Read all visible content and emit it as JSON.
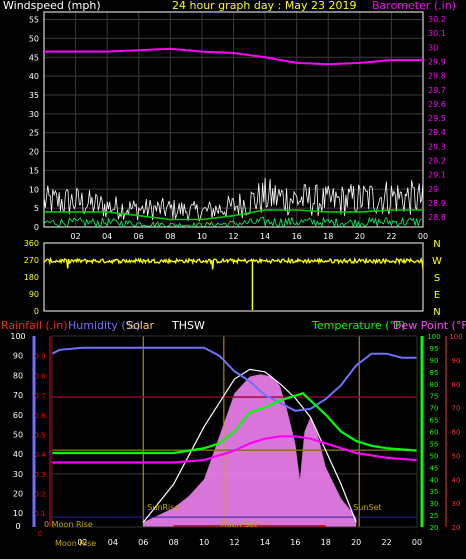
{
  "colors": {
    "background": "#000000",
    "grid": "#3a3a3a",
    "frame": "#ffffff",
    "windspeed": "#ffffff",
    "wind_avg": "#00cc00",
    "wind_low": "#00ff66",
    "barometer": "#ff00ff",
    "wind_dir": "#ffff00",
    "rainfall": "#ff0000",
    "humidity": "#7070ff",
    "solar": "#ffcc66",
    "thsw": "#ffffff",
    "temperature": "#00ff00",
    "dew_point": "#ff00ff",
    "rain_scale": "#ff3333",
    "sun_line": "#c8a800",
    "moon_line": "#c8a800",
    "solar_fill": "#ff88ff",
    "uv_line": "#ff0000",
    "rain_rate": "#990033",
    "et_line": "#777700"
  },
  "header": {
    "windspeed_title": "Windspeed (mph)",
    "graph_title": "24 hour graph day : May 23 2019",
    "barometer_title": "Barometer (.in)"
  },
  "bottom_header": {
    "rainfall": "Rainfall (.in)",
    "humidity": "Humidity (%)",
    "solar": "Solar",
    "thsw": "THSW",
    "temperature": "Temperature (°F)",
    "dew_point": "Dew Point (°F)"
  },
  "events": {
    "sunrise": "SunRise",
    "sunset": "SunSet",
    "moonrise_left": "0 Moon Rise",
    "moonset": "Moon Set",
    "moonrise_bottom": "Moon Rise"
  },
  "compass": [
    "N",
    "W",
    "S",
    "E",
    "N"
  ],
  "chart_data": [
    {
      "type": "line",
      "name": "wind_barometer",
      "x_tick_labels": [
        "02",
        "04",
        "06",
        "08",
        "10",
        "12",
        "14",
        "16",
        "18",
        "20",
        "22",
        "00"
      ],
      "y_left_ticks": [
        "0",
        "5",
        "10",
        "15",
        "20",
        "25",
        "30",
        "35",
        "40",
        "45",
        "50",
        "55"
      ],
      "y_right_ticks": [
        "28.8",
        "28.9",
        "29",
        "29.1",
        "29.2",
        "29.3",
        "29.4",
        "29.5",
        "29.6",
        "29.7",
        "29.8",
        "29.9",
        "30",
        "30.1",
        "30.2"
      ],
      "ylim_left": [
        0,
        57
      ],
      "ylim_right": [
        28.73,
        30.25
      ],
      "barometer": [
        {
          "h": 0,
          "v": 29.97
        },
        {
          "h": 2,
          "v": 29.97
        },
        {
          "h": 4,
          "v": 29.97
        },
        {
          "h": 6,
          "v": 29.98
        },
        {
          "h": 8,
          "v": 29.99
        },
        {
          "h": 10,
          "v": 29.97
        },
        {
          "h": 12,
          "v": 29.96
        },
        {
          "h": 14,
          "v": 29.93
        },
        {
          "h": 16,
          "v": 29.89
        },
        {
          "h": 18,
          "v": 29.88
        },
        {
          "h": 20,
          "v": 29.89
        },
        {
          "h": 22,
          "v": 29.91
        },
        {
          "h": 24,
          "v": 29.91
        }
      ],
      "wind_gust_profile": [
        {
          "h": 0,
          "v": 10
        },
        {
          "h": 2,
          "v": 10
        },
        {
          "h": 4,
          "v": 8
        },
        {
          "h": 6,
          "v": 7
        },
        {
          "h": 8,
          "v": 7
        },
        {
          "h": 10,
          "v": 6
        },
        {
          "h": 12,
          "v": 8
        },
        {
          "h": 14,
          "v": 12
        },
        {
          "h": 16,
          "v": 11
        },
        {
          "h": 18,
          "v": 10
        },
        {
          "h": 20,
          "v": 11
        },
        {
          "h": 22,
          "v": 12
        },
        {
          "h": 24,
          "v": 11
        }
      ],
      "wind_avg": [
        {
          "h": 0,
          "v": 4
        },
        {
          "h": 2,
          "v": 4
        },
        {
          "h": 4,
          "v": 4
        },
        {
          "h": 6,
          "v": 3
        },
        {
          "h": 8,
          "v": 2
        },
        {
          "h": 10,
          "v": 2
        },
        {
          "h": 12,
          "v": 3
        },
        {
          "h": 14,
          "v": 4.5
        },
        {
          "h": 16,
          "v": 4.5
        },
        {
          "h": 18,
          "v": 4
        },
        {
          "h": 20,
          "v": 4
        },
        {
          "h": 22,
          "v": 4.5
        },
        {
          "h": 24,
          "v": 4.5
        }
      ]
    },
    {
      "type": "line",
      "name": "wind_direction",
      "y_ticks": [
        "360",
        "270",
        "180",
        "90",
        "0"
      ],
      "ylim": [
        0,
        360
      ],
      "mean_direction": 265,
      "dip": {
        "h": 13.2,
        "v": 5
      }
    },
    {
      "type": "line",
      "name": "temperature_humidity",
      "x_tick_labels": [
        "02",
        "04",
        "06",
        "08",
        "10",
        "12",
        "14",
        "16",
        "18",
        "20",
        "22",
        "00"
      ],
      "rain_ticks": [
        "0",
        "0.1",
        "0.2",
        "0.3",
        "0.4",
        "0.5",
        "0.6",
        "0.7",
        "0.8",
        "0.9"
      ],
      "humidity_ticks": [
        "10",
        "20",
        "30",
        "40",
        "50",
        "60",
        "70",
        "80",
        "90",
        "100"
      ],
      "temp_ticks_left": [
        "20",
        "25",
        "30",
        "35",
        "40",
        "45",
        "50",
        "55",
        "60",
        "65",
        "70",
        "75",
        "80",
        "85",
        "90",
        "95",
        "100"
      ],
      "temp_ticks_right": [
        "20",
        "30",
        "40",
        "50",
        "60",
        "70",
        "80",
        "90",
        "100"
      ],
      "humidity": [
        {
          "h": 0,
          "v": 91
        },
        {
          "h": 0.5,
          "v": 93
        },
        {
          "h": 2,
          "v": 94
        },
        {
          "h": 4,
          "v": 94
        },
        {
          "h": 6,
          "v": 94
        },
        {
          "h": 8,
          "v": 94
        },
        {
          "h": 10,
          "v": 94
        },
        {
          "h": 11,
          "v": 90
        },
        {
          "h": 12,
          "v": 82
        },
        {
          "h": 13,
          "v": 77
        },
        {
          "h": 14,
          "v": 70
        },
        {
          "h": 15,
          "v": 66
        },
        {
          "h": 16,
          "v": 62
        },
        {
          "h": 17,
          "v": 63
        },
        {
          "h": 18,
          "v": 68
        },
        {
          "h": 19,
          "v": 75
        },
        {
          "h": 20,
          "v": 85
        },
        {
          "h": 21,
          "v": 91
        },
        {
          "h": 22,
          "v": 91
        },
        {
          "h": 23,
          "v": 89
        },
        {
          "h": 24,
          "v": 89
        }
      ],
      "temperature": [
        {
          "h": 0,
          "v": 51
        },
        {
          "h": 2,
          "v": 51
        },
        {
          "h": 4,
          "v": 51
        },
        {
          "h": 6,
          "v": 51
        },
        {
          "h": 8,
          "v": 51
        },
        {
          "h": 10,
          "v": 53
        },
        {
          "h": 11,
          "v": 55
        },
        {
          "h": 12,
          "v": 60
        },
        {
          "h": 13,
          "v": 68
        },
        {
          "h": 14,
          "v": 70
        },
        {
          "h": 15,
          "v": 73
        },
        {
          "h": 16,
          "v": 75
        },
        {
          "h": 16.5,
          "v": 76
        },
        {
          "h": 17,
          "v": 73
        },
        {
          "h": 18,
          "v": 67
        },
        {
          "h": 19,
          "v": 60
        },
        {
          "h": 20,
          "v": 56
        },
        {
          "h": 21,
          "v": 54
        },
        {
          "h": 22,
          "v": 53
        },
        {
          "h": 24,
          "v": 52
        }
      ],
      "dew_point": [
        {
          "h": 0,
          "v": 47
        },
        {
          "h": 4,
          "v": 47
        },
        {
          "h": 8,
          "v": 47
        },
        {
          "h": 10,
          "v": 48
        },
        {
          "h": 12,
          "v": 52
        },
        {
          "h": 13,
          "v": 55
        },
        {
          "h": 14,
          "v": 57
        },
        {
          "h": 15,
          "v": 58
        },
        {
          "h": 16,
          "v": 58
        },
        {
          "h": 17,
          "v": 57
        },
        {
          "h": 18,
          "v": 55
        },
        {
          "h": 19,
          "v": 53
        },
        {
          "h": 20,
          "v": 51
        },
        {
          "h": 22,
          "v": 49
        },
        {
          "h": 24,
          "v": 48
        }
      ],
      "thsw": [
        {
          "h": 6,
          "v": 22
        },
        {
          "h": 8,
          "v": 38
        },
        {
          "h": 10,
          "v": 62
        },
        {
          "h": 12,
          "v": 82
        },
        {
          "h": 13,
          "v": 86
        },
        {
          "h": 14,
          "v": 85
        },
        {
          "h": 15,
          "v": 80
        },
        {
          "h": 16,
          "v": 74
        },
        {
          "h": 17,
          "v": 66
        },
        {
          "h": 18,
          "v": 52
        },
        {
          "h": 19,
          "v": 38
        },
        {
          "h": 20,
          "v": 22
        }
      ],
      "solar": [
        {
          "h": 6,
          "v": 22
        },
        {
          "h": 8,
          "v": 28
        },
        {
          "h": 9,
          "v": 33
        },
        {
          "h": 10,
          "v": 40
        },
        {
          "h": 11,
          "v": 58
        },
        {
          "h": 12,
          "v": 76
        },
        {
          "h": 13,
          "v": 83
        },
        {
          "h": 13.7,
          "v": 84
        },
        {
          "h": 14.5,
          "v": 83
        },
        {
          "h": 15,
          "v": 79
        },
        {
          "h": 15.5,
          "v": 68
        },
        {
          "h": 16,
          "v": 55
        },
        {
          "h": 16.3,
          "v": 40
        },
        {
          "h": 16.6,
          "v": 60
        },
        {
          "h": 17,
          "v": 66
        },
        {
          "h": 17.5,
          "v": 58
        },
        {
          "h": 18,
          "v": 45
        },
        {
          "h": 19,
          "v": 32
        },
        {
          "h": 20,
          "v": 24
        }
      ],
      "rain_rate_level": 0.69,
      "et_level": 0.42,
      "uv_level": 0.03,
      "sunrise_hour": 6.0,
      "sunset_hour": 20.2,
      "moonset_hour": 11.3
    }
  ]
}
